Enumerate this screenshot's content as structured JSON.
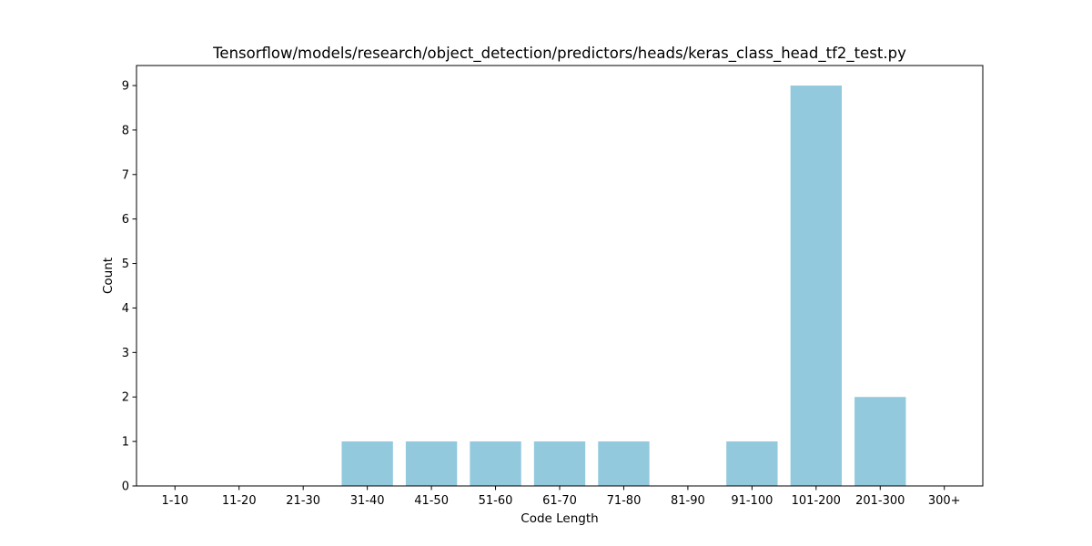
{
  "chart_data": {
    "type": "bar",
    "title": "Tensorflow/models/research/object_detection/predictors/heads/keras_class_head_tf2_test.py",
    "xlabel": "Code Length",
    "ylabel": "Count",
    "categories": [
      "1-10",
      "11-20",
      "21-30",
      "31-40",
      "41-50",
      "51-60",
      "61-70",
      "71-80",
      "81-90",
      "91-100",
      "101-200",
      "201-300",
      "300+"
    ],
    "values": [
      0,
      0,
      0,
      1,
      1,
      1,
      1,
      1,
      0,
      1,
      9,
      2,
      0
    ],
    "ylim": [
      0,
      9.45
    ],
    "yticks": [
      0,
      1,
      2,
      3,
      4,
      5,
      6,
      7,
      8,
      9
    ],
    "bar_color": "#92c9dd",
    "grid": false,
    "legend": "none"
  }
}
